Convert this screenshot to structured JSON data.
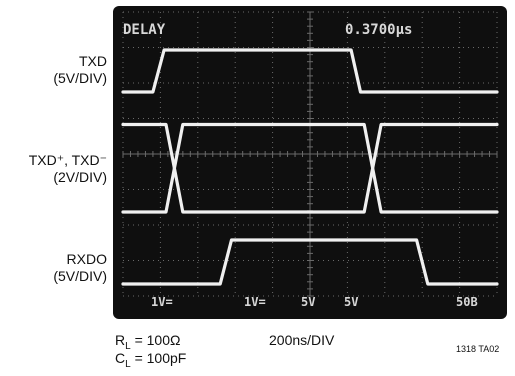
{
  "chart_data": {
    "type": "line",
    "title": "",
    "readout": {
      "mode": "DELAY",
      "delay": "0.3700µs"
    },
    "x_scale": "200ns/DIV",
    "x_divisions": 10,
    "y_divisions": 8,
    "x_unit": "ns",
    "channels": [
      {
        "label_lines": [
          "TXD",
          "(5V/DIV)"
        ],
        "scale": "5V/DIV",
        "segments": [
          [
            [
              0,
              0
            ],
            [
              160,
              0
            ],
            [
              220,
              5
            ],
            [
              1220,
              5
            ],
            [
              1270,
              0
            ],
            [
              2000,
              0
            ]
          ]
        ]
      },
      {
        "label_lines": [
          "TXD⁺, TXD⁻",
          "(2V/DIV)"
        ],
        "scale": "2V/DIV",
        "segments": [
          [
            [
              0,
              5.3
            ],
            [
              230,
              5.3
            ],
            [
              320,
              0
            ],
            [
              1290,
              0
            ],
            [
              1380,
              5.3
            ],
            [
              2000,
              5.3
            ]
          ],
          [
            [
              0,
              0
            ],
            [
              230,
              0
            ],
            [
              320,
              5.3
            ],
            [
              1290,
              5.3
            ],
            [
              1380,
              0
            ],
            [
              2000,
              0
            ]
          ]
        ]
      },
      {
        "label_lines": [
          "RXDO",
          "(5V/DIV)"
        ],
        "scale": "5V/DIV",
        "segments": [
          [
            [
              0,
              0
            ],
            [
              520,
              0
            ],
            [
              580,
              5
            ],
            [
              1570,
              5
            ],
            [
              1630,
              0
            ],
            [
              2000,
              0
            ]
          ]
        ]
      }
    ],
    "screen_markers": [
      "1V=",
      "1V=",
      "5V",
      "5V",
      "50Β"
    ]
  },
  "footer": {
    "rl": "R",
    "rl_sub": "L",
    "rl_val": " = 100Ω",
    "cl": "C",
    "cl_sub": "L",
    "cl_val": " = 100pF",
    "timebase": "200ns/DIV",
    "figure_code": "1318 TA02"
  },
  "colors": {
    "screen_bg": "#0f0f0f",
    "trace": "#f0f0f0",
    "grid": "#6a6a6a"
  }
}
